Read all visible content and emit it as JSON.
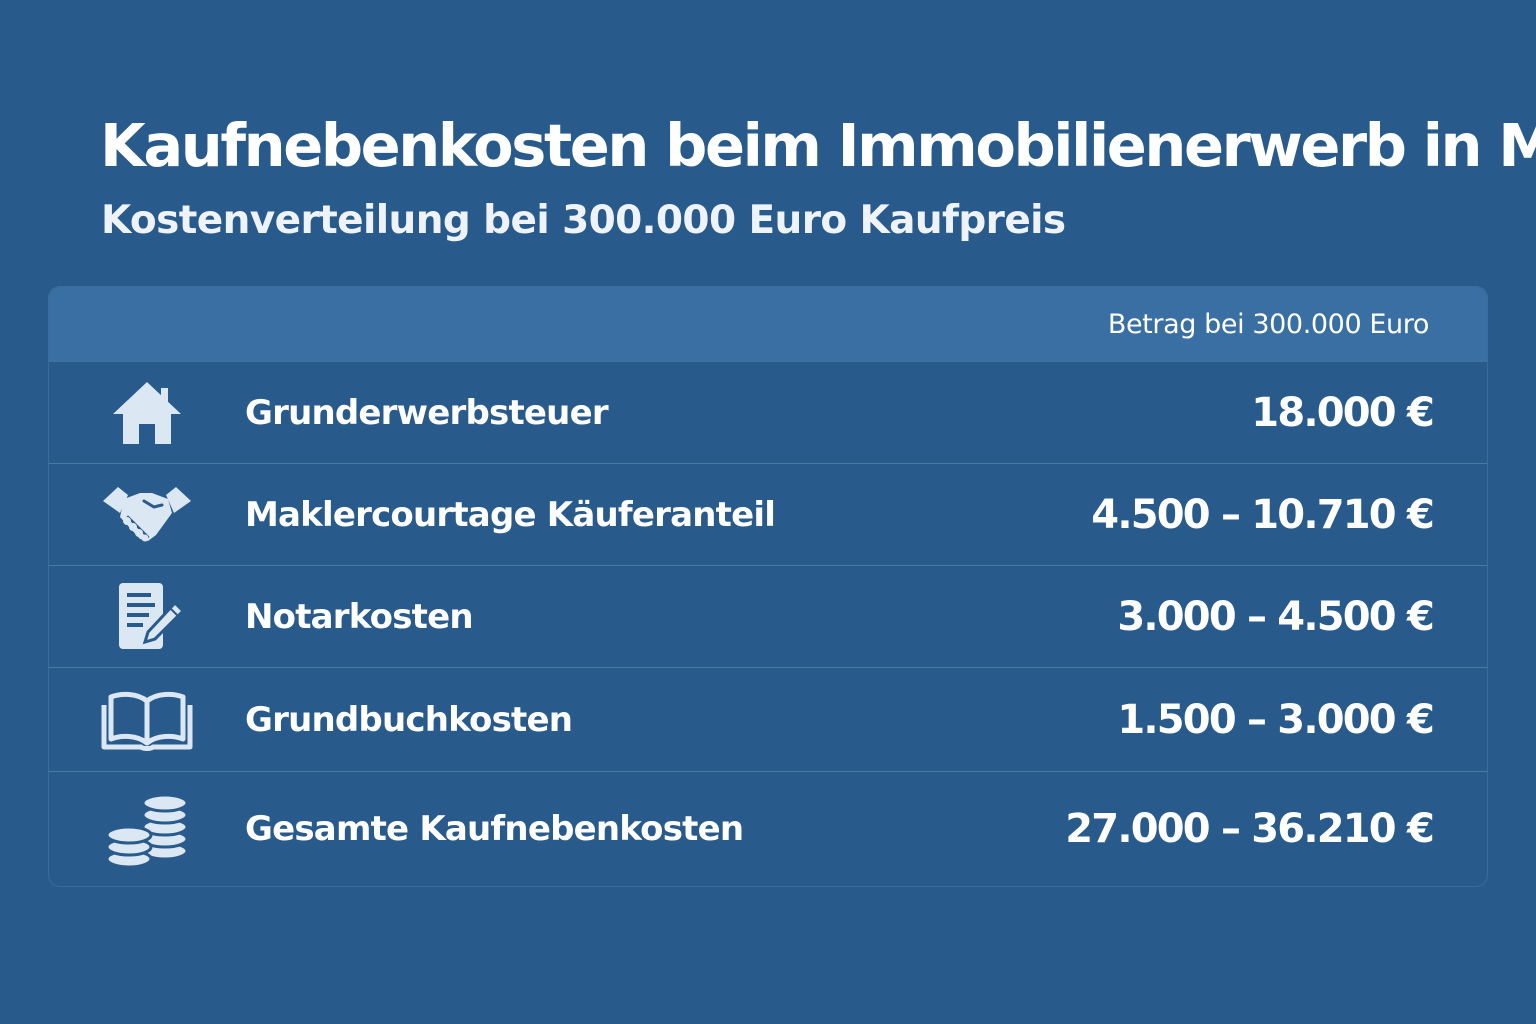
{
  "title": "Kaufnebenkosten beim Immobilienerwerb in MV",
  "subtitle": "Kostenverteilung bei 300.000 Euro Kaufpreis",
  "table": {
    "column_header": "Betrag bei 300.000 Euro",
    "rows": [
      {
        "icon": "house-icon",
        "label": "Grunderwerbsteuer",
        "value": "18.000 €"
      },
      {
        "icon": "handshake-icon",
        "label": "Maklercourtage Käuferanteil",
        "value": "4.500 – 10.710 €"
      },
      {
        "icon": "document-pen-icon",
        "label": "Notarkosten",
        "value": "3.000 – 4.500 €"
      },
      {
        "icon": "open-book-icon",
        "label": "Grundbuchkosten",
        "value": "1.500 – 3.000 €"
      },
      {
        "icon": "coins-icon",
        "label": "Gesamte Kaufnebenkosten",
        "value": "27.000 – 36.210 €"
      }
    ]
  },
  "colors": {
    "background": "#285a8c",
    "header_band": "#3a6fa3",
    "icon": "#dbe7f3",
    "text": "#ffffff"
  }
}
